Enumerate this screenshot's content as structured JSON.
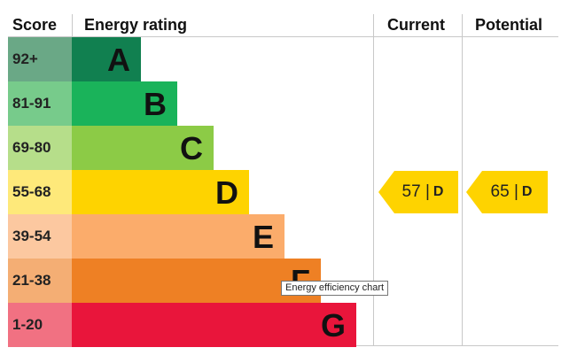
{
  "chart_data": {
    "type": "table",
    "headers": {
      "score": "Score",
      "rating": "Energy rating",
      "current": "Current",
      "potential": "Potential"
    },
    "bands": [
      {
        "score": "92+",
        "letter": "A",
        "color": "#118050",
        "score_color": "#6aa886"
      },
      {
        "score": "81-91",
        "letter": "B",
        "color": "#1ab35a",
        "score_color": "#77cb8b"
      },
      {
        "score": "69-80",
        "letter": "C",
        "color": "#8ccb46",
        "score_color": "#b6de8a"
      },
      {
        "score": "55-68",
        "letter": "D",
        "color": "#fed300",
        "score_color": "#fee97a"
      },
      {
        "score": "39-54",
        "letter": "E",
        "color": "#fbac6b",
        "score_color": "#fcc8a0"
      },
      {
        "score": "21-38",
        "letter": "F",
        "color": "#ee8024",
        "score_color": "#f4ae74"
      },
      {
        "score": "1-20",
        "letter": "G",
        "color": "#e9153b",
        "score_color": "#f17182"
      }
    ],
    "current": {
      "value": 57,
      "separator": "|",
      "band": "D",
      "color": "#fed300"
    },
    "potential": {
      "value": 65,
      "separator": "|",
      "band": "D",
      "color": "#fed300"
    }
  },
  "tooltip": {
    "text": "Energy efficiency chart"
  }
}
